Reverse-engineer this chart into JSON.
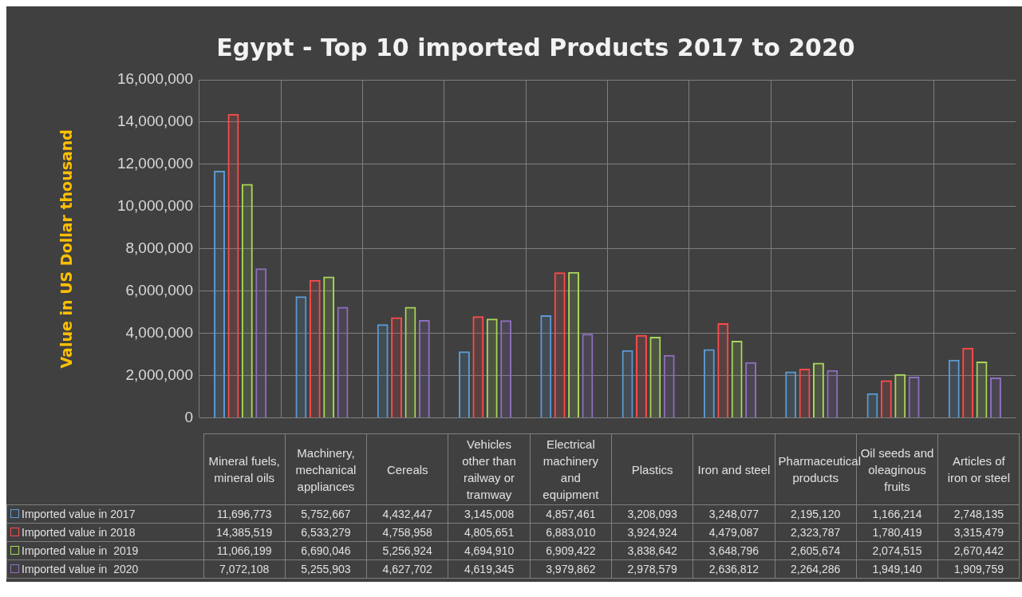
{
  "chart_data": {
    "type": "bar",
    "title": "Egypt - Top 10 imported Products 2017 to 2020",
    "ylabel": "Value in US Dollar thousand",
    "categories": [
      "Mineral fuels, mineral oils",
      "Machinery, mechanical appliances",
      "Cereals",
      "Vehicles other than railway or tramway",
      "Electrical machinery and equipment",
      "Plastics",
      "Iron and steel",
      "Pharmaceutical products",
      "Oil seeds and oleaginous fruits",
      "Articles of iron or steel"
    ],
    "series": [
      {
        "name": "Imported value in 2017",
        "color": "#5b9bd5",
        "values": [
          11696773,
          5752667,
          4432447,
          3145008,
          4857461,
          3208093,
          3248077,
          2195120,
          1166214,
          2748135
        ],
        "value_labels": [
          "11,696,773",
          "5,752,667",
          "4,432,447",
          "3,145,008",
          "4,857,461",
          "3,208,093",
          "3,248,077",
          "2,195,120",
          "1,166,214",
          "2,748,135"
        ]
      },
      {
        "name": "Imported value in 2018",
        "color": "#ff4b4b",
        "values": [
          14385519,
          6533279,
          4758958,
          4805651,
          6883010,
          3924924,
          4479087,
          2323787,
          1780419,
          3315479
        ],
        "value_labels": [
          "14,385,519",
          "6,533,279",
          "4,758,958",
          "4,805,651",
          "6,883,010",
          "3,924,924",
          "4,479,087",
          "2,323,787",
          "1,780,419",
          "3,315,479"
        ]
      },
      {
        "name": "Imported value in  2019",
        "color": "#a9d65a",
        "values": [
          11066199,
          6690046,
          5256924,
          4694910,
          6909422,
          3838642,
          3648796,
          2605674,
          2074515,
          2670442
        ],
        "value_labels": [
          "11,066,199",
          "6,690,046",
          "5,256,924",
          "4,694,910",
          "6,909,422",
          "3,838,642",
          "3,648,796",
          "2,605,674",
          "2,074,515",
          "2,670,442"
        ]
      },
      {
        "name": "Imported value in  2020",
        "color": "#8e6fc0",
        "values": [
          7072108,
          5255903,
          4627702,
          4619345,
          3979862,
          2978579,
          2636812,
          2264286,
          1949140,
          1909759
        ],
        "value_labels": [
          "7,072,108",
          "5,255,903",
          "4,627,702",
          "4,619,345",
          "3,979,862",
          "2,978,579",
          "2,636,812",
          "2,264,286",
          "1,949,140",
          "1,909,759"
        ]
      }
    ],
    "ylim": [
      0,
      16000000
    ],
    "yticks": [
      0,
      {
        "value": 2000000,
        "label": "2,000,000"
      },
      {
        "value": 4000000,
        "label": "4,000,000"
      },
      {
        "value": 6000000,
        "label": "6,000,000"
      },
      {
        "value": 8000000,
        "label": "8,000,000"
      },
      {
        "value": 10000000,
        "label": "10,000,000"
      },
      {
        "value": 12000000,
        "label": "12,000,000"
      },
      {
        "value": 14000000,
        "label": "14,000,000"
      },
      {
        "value": 16000000,
        "label": "16,000,000"
      }
    ],
    "grid": true,
    "legend": "bottom"
  }
}
